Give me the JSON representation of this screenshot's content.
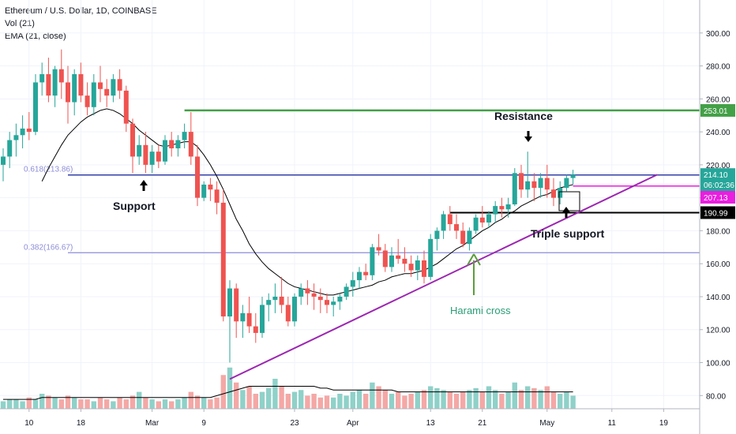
{
  "legend": {
    "symbol": "Ethereum / U.S. Dollar, 1D, COINBASE",
    "volume": "Vol (21)",
    "ema": "EMA (21, close)"
  },
  "colors": {
    "up": "#26a69a",
    "down": "#ef5350",
    "vol_up": "#8fd1c9",
    "vol_down": "#f4a8a6",
    "resistance_green": "#43a047",
    "fib_blue": "#3340a8",
    "fib_light": "#8c8cd9",
    "trendline": "#9c27b0",
    "magenta": "#e91ee0",
    "ema": "#000000",
    "harami_arrow": "#5a9e3c",
    "harami_text": "#2a9d77"
  },
  "chart_data": {
    "type": "candlestick",
    "title": "Ethereum / U.S. Dollar, 1D, COINBASE",
    "ylim": [
      72,
      320
    ],
    "yticks": [
      80,
      100,
      120,
      140,
      160,
      180,
      200,
      220,
      240,
      260,
      280,
      300
    ],
    "ytick_labels": [
      "80.00",
      "100.00",
      "120.00",
      "140.00",
      "160.00",
      "180.00",
      "200.00",
      "220.00",
      "240.00",
      "260.00",
      "280.00",
      "300.00"
    ],
    "xticks": [
      {
        "label": "10",
        "index": 4
      },
      {
        "label": "18",
        "index": 12
      },
      {
        "label": "Mar",
        "index": 23
      },
      {
        "label": "9",
        "index": 31
      },
      {
        "label": "23",
        "index": 45
      },
      {
        "label": "Apr",
        "index": 54
      },
      {
        "label": "13",
        "index": 66
      },
      {
        "label": "21",
        "index": 74
      },
      {
        "label": "May",
        "index": 84
      },
      {
        "label": "11",
        "index": 94
      },
      {
        "label": "19",
        "index": 102
      }
    ],
    "ohlc": [
      [
        220,
        230,
        210,
        225
      ],
      [
        225,
        240,
        218,
        235
      ],
      [
        235,
        245,
        225,
        238
      ],
      [
        238,
        250,
        230,
        242
      ],
      [
        242,
        252,
        235,
        240
      ],
      [
        240,
        275,
        238,
        270
      ],
      [
        270,
        282,
        262,
        275
      ],
      [
        275,
        285,
        258,
        262
      ],
      [
        262,
        280,
        255,
        278
      ],
      [
        278,
        290,
        260,
        270
      ],
      [
        270,
        280,
        245,
        258
      ],
      [
        258,
        278,
        250,
        275
      ],
      [
        275,
        282,
        258,
        262
      ],
      [
        262,
        270,
        250,
        255
      ],
      [
        255,
        275,
        250,
        270
      ],
      [
        270,
        280,
        258,
        266
      ],
      [
        266,
        272,
        255,
        262
      ],
      [
        262,
        275,
        258,
        272
      ],
      [
        272,
        278,
        260,
        265
      ],
      [
        265,
        268,
        240,
        245
      ],
      [
        245,
        248,
        215,
        225
      ],
      [
        225,
        238,
        220,
        232
      ],
      [
        232,
        240,
        215,
        220
      ],
      [
        220,
        232,
        215,
        228
      ],
      [
        228,
        232,
        218,
        222
      ],
      [
        222,
        238,
        220,
        235
      ],
      [
        235,
        240,
        225,
        230
      ],
      [
        230,
        238,
        225,
        235
      ],
      [
        235,
        245,
        230,
        240
      ],
      [
        240,
        252,
        220,
        225
      ],
      [
        225,
        232,
        195,
        200
      ],
      [
        200,
        210,
        198,
        208
      ],
      [
        208,
        212,
        198,
        205
      ],
      [
        205,
        210,
        190,
        197
      ],
      [
        197,
        205,
        125,
        128
      ],
      [
        128,
        150,
        100,
        145
      ],
      [
        145,
        148,
        115,
        125
      ],
      [
        125,
        135,
        115,
        130
      ],
      [
        130,
        140,
        118,
        122
      ],
      [
        122,
        130,
        112,
        118
      ],
      [
        118,
        140,
        115,
        135
      ],
      [
        135,
        142,
        125,
        138
      ],
      [
        138,
        148,
        130,
        140
      ],
      [
        140,
        152,
        130,
        135
      ],
      [
        135,
        140,
        122,
        125
      ],
      [
        125,
        142,
        122,
        140
      ],
      [
        140,
        148,
        135,
        145
      ],
      [
        145,
        150,
        135,
        142
      ],
      [
        142,
        148,
        132,
        140
      ],
      [
        140,
        145,
        130,
        138
      ],
      [
        138,
        142,
        130,
        135
      ],
      [
        135,
        140,
        128,
        137
      ],
      [
        137,
        142,
        132,
        140
      ],
      [
        140,
        148,
        138,
        146
      ],
      [
        146,
        155,
        140,
        150
      ],
      [
        150,
        158,
        145,
        155
      ],
      [
        155,
        160,
        150,
        153
      ],
      [
        153,
        172,
        150,
        170
      ],
      [
        170,
        178,
        165,
        168
      ],
      [
        168,
        172,
        155,
        158
      ],
      [
        158,
        170,
        155,
        165
      ],
      [
        165,
        175,
        160,
        163
      ],
      [
        163,
        170,
        155,
        160
      ],
      [
        160,
        165,
        152,
        156
      ],
      [
        156,
        165,
        150,
        162
      ],
      [
        162,
        168,
        148,
        152
      ],
      [
        152,
        178,
        150,
        175
      ],
      [
        175,
        182,
        168,
        180
      ],
      [
        180,
        192,
        175,
        190
      ],
      [
        190,
        195,
        180,
        184
      ],
      [
        184,
        190,
        175,
        180
      ],
      [
        180,
        185,
        170,
        172
      ],
      [
        172,
        182,
        168,
        180
      ],
      [
        180,
        190,
        178,
        188
      ],
      [
        188,
        195,
        182,
        185
      ],
      [
        185,
        192,
        182,
        190
      ],
      [
        190,
        198,
        185,
        195
      ],
      [
        195,
        200,
        188,
        193
      ],
      [
        193,
        200,
        188,
        196
      ],
      [
        196,
        218,
        195,
        215
      ],
      [
        215,
        220,
        200,
        205
      ],
      [
        205,
        228,
        200,
        210
      ],
      [
        210,
        215,
        198,
        206
      ],
      [
        206,
        215,
        200,
        212
      ],
      [
        212,
        220,
        200,
        205
      ],
      [
        205,
        212,
        195,
        200
      ],
      [
        200,
        210,
        196,
        206
      ],
      [
        206,
        214,
        204,
        212
      ],
      [
        212,
        217,
        208,
        214
      ]
    ],
    "volume": [
      4,
      5,
      5,
      4,
      6,
      5,
      8,
      7,
      6,
      5,
      7,
      6,
      5,
      5,
      4,
      6,
      5,
      4,
      6,
      5,
      7,
      9,
      6,
      5,
      4,
      5,
      4,
      5,
      6,
      9,
      7,
      6,
      5,
      6,
      18,
      22,
      14,
      10,
      12,
      8,
      9,
      11,
      16,
      12,
      8,
      9,
      10,
      7,
      8,
      6,
      7,
      6,
      8,
      7,
      9,
      10,
      8,
      14,
      12,
      10,
      8,
      9,
      7,
      8,
      9,
      10,
      12,
      11,
      10,
      9,
      8,
      9,
      10,
      11,
      9,
      12,
      10,
      8,
      9,
      14,
      10,
      12,
      11,
      10,
      12,
      9,
      8,
      9,
      7
    ],
    "ema": [
      null,
      null,
      null,
      null,
      null,
      null,
      210,
      218,
      225,
      232,
      238,
      242,
      246,
      249,
      251,
      253,
      254,
      253,
      251,
      248,
      245,
      241,
      238,
      235,
      232,
      231,
      232,
      233,
      234,
      234,
      231,
      226,
      220,
      213,
      205,
      196,
      187,
      180,
      172,
      166,
      161,
      157,
      154,
      151,
      148,
      146,
      145,
      144,
      143,
      142,
      141,
      141,
      142,
      143,
      144,
      145,
      146,
      147,
      149,
      150,
      152,
      153,
      154,
      154,
      155,
      156,
      158,
      160,
      163,
      166,
      169,
      171,
      174,
      177,
      180,
      182,
      185,
      187,
      190,
      192,
      195,
      197,
      199,
      201,
      202,
      204,
      206,
      207,
      208
    ],
    "ema_volume": [
      5,
      5,
      5,
      5,
      5,
      5,
      6,
      6,
      6,
      6,
      6,
      6,
      6,
      6,
      6,
      6,
      6,
      6,
      6,
      6,
      6,
      6,
      6,
      6,
      6,
      6,
      6,
      6,
      6,
      6,
      6,
      6,
      6,
      7,
      8,
      9,
      10,
      11,
      12,
      12,
      12,
      12,
      12,
      12,
      12,
      12,
      12,
      12,
      12,
      11,
      11,
      10,
      10,
      10,
      10,
      10,
      10,
      10,
      10,
      10,
      10,
      9,
      9,
      9,
      9,
      9,
      9,
      9,
      9,
      9,
      9,
      9,
      9,
      9,
      9,
      9,
      9,
      9,
      9,
      9,
      9,
      9,
      9,
      9,
      9,
      9,
      9,
      9,
      9
    ],
    "horizontal_levels": [
      {
        "price": 253.01,
        "label": "253.01",
        "color_key": "resistance_green"
      },
      {
        "price": 213.86,
        "label": "0.618(213.86)",
        "color_key": "fib_blue"
      },
      {
        "price": 166.67,
        "label": "0.382(166.67)",
        "color_key": "fib_light"
      },
      {
        "price": 190.99,
        "label": "190.99",
        "color_key": "ema"
      },
      {
        "price": 207.13,
        "label": "207.13",
        "color_key": "magenta"
      }
    ],
    "trendline": {
      "from": {
        "index": 35,
        "price": 90
      },
      "to": {
        "index": 101,
        "price": 214
      }
    },
    "price_tags": [
      {
        "price": 253.01,
        "text": "253.01",
        "bg": "#43a047"
      },
      {
        "price": 214.1,
        "text": "214.10",
        "bg": "#26a69a"
      },
      {
        "price": 210.0,
        "text": "06:02:36",
        "bg": "#26a69a"
      },
      {
        "price": 207.13,
        "text": "207.13",
        "bg": "#e91ee0"
      },
      {
        "price": 190.99,
        "text": "190.99",
        "bg": "#000000"
      }
    ],
    "annotations": {
      "support": "Support",
      "resistance": "Resistance",
      "triple_support": "Triple support",
      "harami_cross": "Harami cross"
    }
  }
}
